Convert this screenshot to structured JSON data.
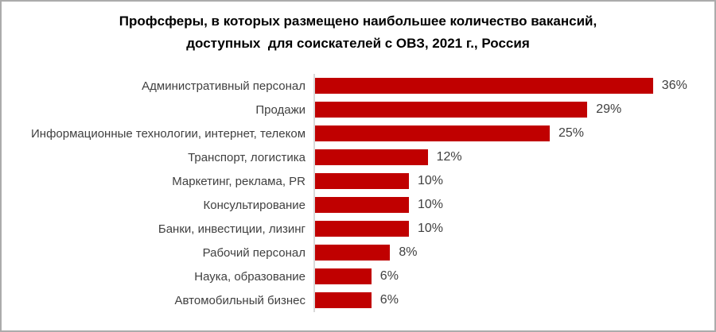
{
  "frame": {
    "background": "#FFFFFF",
    "border_color": "#ABABAB"
  },
  "title": {
    "line1": "Профсферы, в которых размещено наибольшее количество вакансий,",
    "line2": "доступных  для соискателей с ОВЗ, 2021 г., Россия"
  },
  "chart_data": {
    "type": "bar",
    "orientation": "horizontal",
    "title": "Профсферы, в которых размещено наибольшее количество вакансий, доступных для соискателей с ОВЗ, 2021 г., Россия",
    "categories": [
      "Административный персонал",
      "Продажи",
      "Информационные технологии, интернет, телеком",
      "Транспорт, логистика",
      "Маркетинг, реклама, PR",
      "Консультирование",
      "Банки, инвестиции, лизинг",
      "Рабочий персонал",
      "Наука, образование",
      "Автомобильный бизнес"
    ],
    "values": [
      36,
      29,
      25,
      12,
      10,
      10,
      10,
      8,
      6,
      6
    ],
    "value_labels": [
      "36%",
      "29%",
      "25%",
      "12%",
      "10%",
      "10%",
      "10%",
      "8%",
      "6%",
      "6%"
    ],
    "unit": "%",
    "xlabel": "",
    "ylabel": "",
    "xlim": [
      0,
      40
    ],
    "grid": false,
    "legend": false,
    "bar_color": "#C00000",
    "label_color": "#404040",
    "axis_line_color": "#D9D9D9"
  }
}
